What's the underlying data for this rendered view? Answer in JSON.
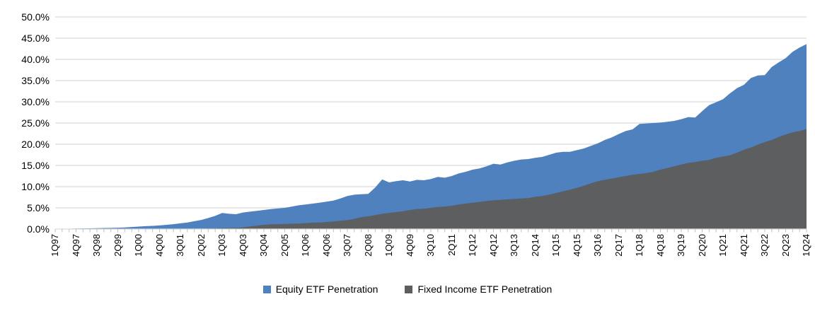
{
  "chart_data": {
    "type": "area",
    "mode": "overlay",
    "title": "",
    "x_unit": "quarter",
    "x_start": "1Q97",
    "x_end": "1Q24",
    "n_points": 109,
    "x_tick_label_every": 3,
    "x_tick_labels": [
      "1Q97",
      "4Q97",
      "3Q98",
      "2Q99",
      "1Q00",
      "4Q00",
      "3Q01",
      "2Q02",
      "1Q03",
      "4Q03",
      "3Q04",
      "2Q05",
      "1Q06",
      "4Q06",
      "3Q07",
      "2Q08",
      "1Q09",
      "4Q09",
      "3Q10",
      "2Q11",
      "1Q12",
      "4Q12",
      "3Q13",
      "2Q14",
      "1Q15",
      "4Q15",
      "3Q16",
      "2Q17",
      "1Q18",
      "4Q18",
      "3Q19",
      "2Q20",
      "1Q21",
      "4Q21",
      "3Q22",
      "2Q23",
      "1Q24"
    ],
    "y_tick_labels": [
      "0.0%",
      "5.0%",
      "10.0%",
      "15.0%",
      "20.0%",
      "25.0%",
      "30.0%",
      "35.0%",
      "40.0%",
      "45.0%",
      "50.0%"
    ],
    "ylim": [
      0,
      50
    ],
    "grid": "horizontal",
    "gridline_color": "#d9d9d9",
    "tick_color": "#bfbfbf",
    "axis_text_color": "#000000",
    "legend_position": "bottom-center",
    "series": [
      {
        "name": "Equity ETF Penetration",
        "color": "#4e81bd",
        "values": [
          0.05,
          0.07,
          0.09,
          0.12,
          0.14,
          0.17,
          0.2,
          0.24,
          0.28,
          0.32,
          0.38,
          0.48,
          0.58,
          0.68,
          0.75,
          0.85,
          1.0,
          1.15,
          1.35,
          1.55,
          1.85,
          2.15,
          2.6,
          3.1,
          3.8,
          3.6,
          3.5,
          3.9,
          4.1,
          4.3,
          4.5,
          4.7,
          4.85,
          5.0,
          5.3,
          5.6,
          5.8,
          6.0,
          6.2,
          6.45,
          6.7,
          7.2,
          7.8,
          8.1,
          8.2,
          8.3,
          9.8,
          11.7,
          11.0,
          11.3,
          11.5,
          11.2,
          11.6,
          11.5,
          11.8,
          12.3,
          12.1,
          12.5,
          13.1,
          13.5,
          14.0,
          14.3,
          14.8,
          15.4,
          15.2,
          15.7,
          16.1,
          16.4,
          16.5,
          16.8,
          17.0,
          17.5,
          18.0,
          18.2,
          18.2,
          18.6,
          19.0,
          19.6,
          20.2,
          21.0,
          21.6,
          22.4,
          23.1,
          23.5,
          24.8,
          24.9,
          25.0,
          25.1,
          25.3,
          25.5,
          25.9,
          26.4,
          26.3,
          27.8,
          29.2,
          29.9,
          30.6,
          32.0,
          33.2,
          34.0,
          35.6,
          36.2,
          36.3,
          38.2,
          39.3,
          40.3,
          41.8,
          42.8,
          43.6
        ]
      },
      {
        "name": "Fixed Income ETF Penetration",
        "color": "#5c5e60",
        "values": [
          0,
          0,
          0,
          0,
          0,
          0,
          0,
          0,
          0,
          0,
          0,
          0,
          0,
          0,
          0,
          0,
          0,
          0,
          0,
          0,
          0,
          0.05,
          0.1,
          0.15,
          0.2,
          0.25,
          0.3,
          0.4,
          0.6,
          0.8,
          1.0,
          1.1,
          1.15,
          1.2,
          1.25,
          1.3,
          1.4,
          1.5,
          1.55,
          1.65,
          1.8,
          1.95,
          2.1,
          2.4,
          2.8,
          3.0,
          3.3,
          3.6,
          3.8,
          4.0,
          4.2,
          4.5,
          4.7,
          4.8,
          5.0,
          5.2,
          5.3,
          5.5,
          5.8,
          6.0,
          6.2,
          6.4,
          6.6,
          6.8,
          6.9,
          7.0,
          7.1,
          7.2,
          7.3,
          7.6,
          7.8,
          8.1,
          8.5,
          8.9,
          9.3,
          9.7,
          10.2,
          10.8,
          11.3,
          11.6,
          11.9,
          12.2,
          12.5,
          12.8,
          13.0,
          13.2,
          13.5,
          14.0,
          14.4,
          14.8,
          15.2,
          15.6,
          15.8,
          16.1,
          16.3,
          16.8,
          17.1,
          17.4,
          18.0,
          18.7,
          19.2,
          19.9,
          20.5,
          21.0,
          21.7,
          22.3,
          22.8,
          23.1,
          23.6
        ]
      }
    ]
  }
}
